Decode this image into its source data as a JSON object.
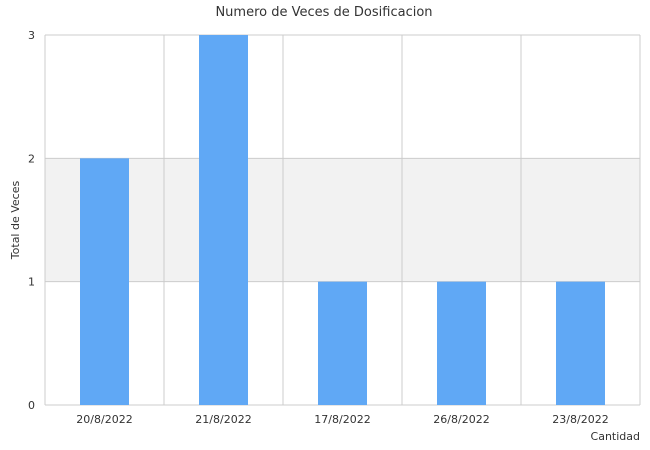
{
  "chart_data": {
    "type": "bar",
    "title": "Numero de Veces de Dosificacion",
    "xlabel": "Cantidad",
    "ylabel": "Total de Veces",
    "categories": [
      "20/8/2022",
      "21/8/2022",
      "17/8/2022",
      "26/8/2022",
      "23/8/2022"
    ],
    "values": [
      2,
      3,
      1,
      1,
      1
    ],
    "ylim": [
      0,
      3
    ],
    "yticks": [
      "0",
      "1",
      "2",
      "3"
    ],
    "grid": true,
    "legend": "none",
    "colors": {
      "bar": "#60a8f5",
      "band": "#f2f2f2",
      "grid": "#cccccc",
      "text": "#333333"
    }
  }
}
